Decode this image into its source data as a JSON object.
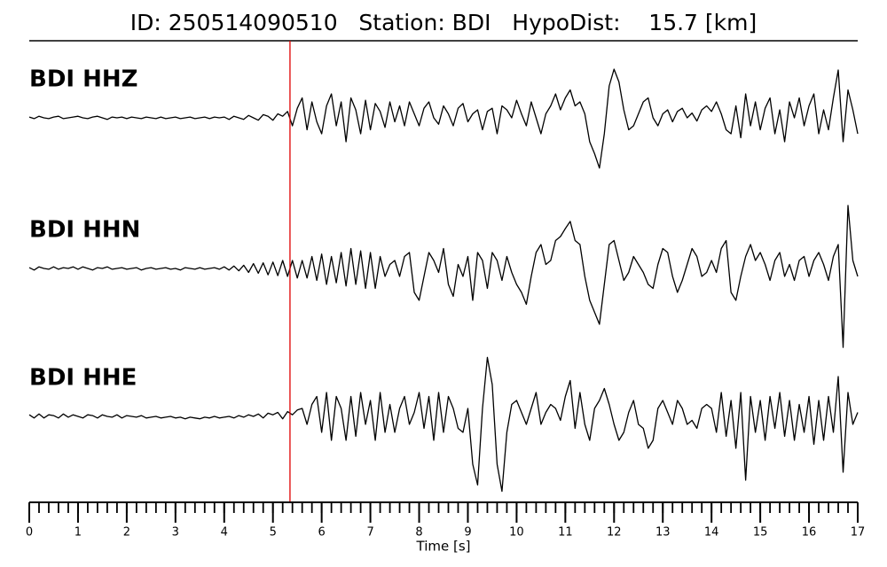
{
  "chart_data": {
    "type": "seismogram",
    "title": "ID: 250514090510   Station: BDI   HypoDist:    15.7 [km]",
    "xlabel": "Time [s]",
    "xlim": [
      0,
      17
    ],
    "xticks": [
      0,
      1,
      2,
      3,
      4,
      5,
      6,
      7,
      8,
      9,
      10,
      11,
      12,
      13,
      14,
      15,
      16,
      17
    ],
    "xminor_step": 0.2,
    "ylim": [
      -1,
      1
    ],
    "label_color": "#4a9a0a",
    "pick": 5.35,
    "pick_color": "#e00000",
    "x": [
      0,
      0.1,
      0.2,
      0.3,
      0.4,
      0.5,
      0.6,
      0.7,
      0.8,
      0.9,
      1,
      1.1,
      1.2,
      1.3,
      1.4,
      1.5,
      1.6,
      1.7,
      1.8,
      1.9,
      2,
      2.1,
      2.2,
      2.3,
      2.4,
      2.5,
      2.6,
      2.7,
      2.8,
      2.9,
      3,
      3.1,
      3.2,
      3.3,
      3.4,
      3.5,
      3.6,
      3.7,
      3.8,
      3.9,
      4,
      4.1,
      4.2,
      4.3,
      4.4,
      4.5,
      4.6,
      4.7,
      4.8,
      4.9,
      5,
      5.1,
      5.2,
      5.3,
      5.4,
      5.5,
      5.6,
      5.7,
      5.8,
      5.9,
      6,
      6.1,
      6.2,
      6.3,
      6.4,
      6.5,
      6.6,
      6.7,
      6.8,
      6.9,
      7,
      7.1,
      7.2,
      7.3,
      7.4,
      7.5,
      7.6,
      7.7,
      7.8,
      7.9,
      8,
      8.1,
      8.2,
      8.3,
      8.4,
      8.5,
      8.6,
      8.7,
      8.8,
      8.9,
      9,
      9.1,
      9.2,
      9.3,
      9.4,
      9.5,
      9.6,
      9.7,
      9.8,
      9.9,
      10,
      10.1,
      10.2,
      10.3,
      10.4,
      10.5,
      10.6,
      10.7,
      10.8,
      10.9,
      11,
      11.1,
      11.2,
      11.3,
      11.4,
      11.5,
      11.6,
      11.7,
      11.8,
      11.9,
      12,
      12.1,
      12.2,
      12.3,
      12.4,
      12.5,
      12.6,
      12.7,
      12.8,
      12.9,
      13,
      13.1,
      13.2,
      13.3,
      13.4,
      13.5,
      13.6,
      13.7,
      13.8,
      13.9,
      14,
      14.1,
      14.2,
      14.3,
      14.4,
      14.5,
      14.6,
      14.7,
      14.8,
      14.9,
      15,
      15.1,
      15.2,
      15.3,
      15.4,
      15.5,
      15.6,
      15.7,
      15.8,
      15.9,
      16,
      16.1,
      16.2,
      16.3,
      16.4,
      16.5,
      16.6,
      16.7,
      16.8,
      16.9,
      17
    ],
    "series": [
      {
        "name": "BDI HHZ",
        "color": "#000000",
        "values": [
          0.01,
          -0.01,
          0.02,
          0,
          -0.01,
          0.01,
          0.02,
          -0.01,
          0,
          0.01,
          0.02,
          0,
          -0.01,
          0.01,
          0.02,
          0,
          -0.02,
          0.01,
          0,
          0.01,
          -0.01,
          0.01,
          0,
          -0.01,
          0.01,
          0,
          -0.01,
          0.01,
          -0.01,
          0,
          0.01,
          -0.01,
          0,
          0.01,
          -0.01,
          0,
          0.01,
          -0.01,
          0.01,
          0,
          0.01,
          -0.02,
          0.02,
          0,
          -0.02,
          0.03,
          0,
          -0.03,
          0.04,
          0.02,
          -0.03,
          0.05,
          0.02,
          0.08,
          -0.1,
          0.12,
          0.25,
          -0.15,
          0.2,
          -0.05,
          -0.2,
          0.15,
          0.3,
          -0.1,
          0.2,
          -0.3,
          0.25,
          0.1,
          -0.2,
          0.22,
          -0.15,
          0.18,
          0.08,
          -0.12,
          0.2,
          -0.05,
          0.15,
          -0.1,
          0.2,
          0.05,
          -0.1,
          0.12,
          0.2,
          0,
          -0.08,
          0.15,
          0.05,
          -0.1,
          0.12,
          0.18,
          -0.05,
          0.05,
          0.1,
          -0.15,
          0.08,
          0.12,
          -0.2,
          0.15,
          0.1,
          0,
          0.22,
          0.05,
          -0.1,
          0.2,
          0,
          -0.2,
          0.05,
          0.15,
          0.3,
          0.1,
          0.25,
          0.35,
          0.15,
          0.2,
          0.05,
          -0.3,
          -0.45,
          -0.63,
          -0.2,
          0.4,
          0.61,
          0.45,
          0.1,
          -0.15,
          -0.1,
          0.05,
          0.2,
          0.25,
          0,
          -0.1,
          0.05,
          0.1,
          -0.05,
          0.08,
          0.12,
          0,
          0.06,
          -0.04,
          0.1,
          0.15,
          0.08,
          0.2,
          0.05,
          -0.15,
          -0.2,
          0.15,
          -0.25,
          0.3,
          -0.1,
          0.2,
          -0.15,
          0.12,
          0.25,
          -0.2,
          0.1,
          -0.3,
          0.2,
          0,
          0.25,
          -0.1,
          0.15,
          0.3,
          -0.2,
          0.1,
          -0.15,
          0.25,
          0.6,
          -0.3,
          0.35,
          0.1,
          -0.2
        ]
      },
      {
        "name": "BDI HHN",
        "color": "#000000",
        "values": [
          0.01,
          -0.02,
          0.02,
          0,
          -0.01,
          0.02,
          -0.01,
          0.01,
          0,
          0.02,
          -0.01,
          0.02,
          0,
          -0.02,
          0.01,
          0,
          0.02,
          -0.01,
          0,
          0.01,
          -0.01,
          0,
          0.01,
          -0.02,
          0,
          0.01,
          -0.01,
          0,
          0.01,
          -0.01,
          0,
          -0.02,
          0.01,
          0,
          -0.01,
          0.01,
          -0.01,
          0,
          0.01,
          -0.01,
          0.02,
          -0.02,
          0.03,
          -0.03,
          0.04,
          -0.05,
          0.06,
          -0.06,
          0.07,
          -0.08,
          0.08,
          -0.09,
          0.1,
          -0.1,
          0.1,
          -0.12,
          0.1,
          -0.12,
          0.15,
          -0.15,
          0.18,
          -0.2,
          0.15,
          -0.18,
          0.2,
          -0.22,
          0.25,
          -0.2,
          0.22,
          -0.25,
          0.2,
          -0.25,
          0.15,
          -0.1,
          0.05,
          0.1,
          -0.1,
          0.15,
          0.2,
          -0.3,
          -0.4,
          -0.1,
          0.2,
          0.1,
          -0.05,
          0.25,
          -0.2,
          -0.35,
          0.05,
          -0.1,
          0.15,
          -0.4,
          0.2,
          0.1,
          -0.25,
          0.2,
          0.1,
          -0.15,
          0.15,
          -0.05,
          -0.2,
          -0.3,
          -0.45,
          -0.1,
          0.2,
          0.3,
          0.05,
          0.1,
          0.35,
          0.4,
          0.5,
          0.59,
          0.35,
          0.3,
          -0.1,
          -0.4,
          -0.55,
          -0.7,
          -0.2,
          0.3,
          0.35,
          0.1,
          -0.15,
          -0.05,
          0.15,
          0.05,
          -0.05,
          -0.2,
          -0.25,
          0.05,
          0.25,
          0.2,
          -0.1,
          -0.3,
          -0.15,
          0.05,
          0.25,
          0.15,
          -0.1,
          -0.05,
          0.1,
          -0.05,
          0.25,
          0.35,
          -0.3,
          -0.4,
          -0.1,
          0.15,
          0.3,
          0.1,
          0.2,
          0.05,
          -0.15,
          0.1,
          0.2,
          -0.1,
          0.05,
          -0.15,
          0.1,
          0.15,
          -0.1,
          0.1,
          0.2,
          0.05,
          -0.15,
          0.15,
          0.3,
          -0.99,
          0.79,
          0.1,
          -0.1
        ]
      },
      {
        "name": "BDI HHE",
        "color": "#000000",
        "values": [
          0.02,
          -0.02,
          0.03,
          -0.02,
          0.02,
          0.01,
          -0.02,
          0.03,
          -0.01,
          0.02,
          0,
          -0.02,
          0.02,
          0.01,
          -0.02,
          0.02,
          0,
          -0.01,
          0.02,
          -0.02,
          0.01,
          0,
          -0.01,
          0.01,
          -0.02,
          -0.01,
          0,
          -0.02,
          -0.01,
          0,
          -0.02,
          -0.01,
          -0.03,
          -0.01,
          -0.02,
          -0.03,
          -0.01,
          -0.02,
          0,
          -0.02,
          -0.01,
          0,
          -0.02,
          0.01,
          -0.01,
          0.02,
          0,
          0.03,
          -0.02,
          0.04,
          0.02,
          0.05,
          -0.03,
          0.06,
          0.02,
          0.08,
          0.1,
          -0.1,
          0.15,
          0.25,
          -0.2,
          0.3,
          -0.3,
          0.25,
          0.1,
          -0.3,
          0.25,
          -0.25,
          0.3,
          -0.1,
          0.2,
          -0.3,
          0.3,
          -0.2,
          0.15,
          -0.2,
          0.1,
          0.25,
          -0.1,
          0.05,
          0.3,
          -0.15,
          0.25,
          -0.3,
          0.3,
          -0.2,
          0.25,
          0.1,
          -0.15,
          -0.2,
          0.1,
          -0.6,
          -0.86,
          0.1,
          0.74,
          0.4,
          -0.6,
          -0.94,
          -0.2,
          0.15,
          0.2,
          0.05,
          -0.1,
          0.1,
          0.3,
          -0.1,
          0.05,
          0.15,
          0.1,
          -0.05,
          0.25,
          0.45,
          -0.15,
          0.3,
          -0.1,
          -0.3,
          0.1,
          0.2,
          0.35,
          0.15,
          -0.1,
          -0.3,
          -0.2,
          0.05,
          0.2,
          -0.1,
          -0.15,
          -0.4,
          -0.3,
          0.1,
          0.2,
          0.05,
          -0.1,
          0.2,
          0.1,
          -0.1,
          -0.05,
          -0.15,
          0.1,
          0.15,
          0.1,
          -0.2,
          0.3,
          -0.25,
          0.2,
          -0.4,
          0.3,
          -0.8,
          0.25,
          -0.2,
          0.2,
          -0.3,
          0.25,
          -0.15,
          0.3,
          -0.25,
          0.2,
          -0.3,
          0.15,
          -0.2,
          0.25,
          -0.35,
          0.2,
          -0.3,
          0.25,
          -0.2,
          0.5,
          -0.7,
          0.3,
          -0.1,
          0.05
        ]
      }
    ]
  }
}
